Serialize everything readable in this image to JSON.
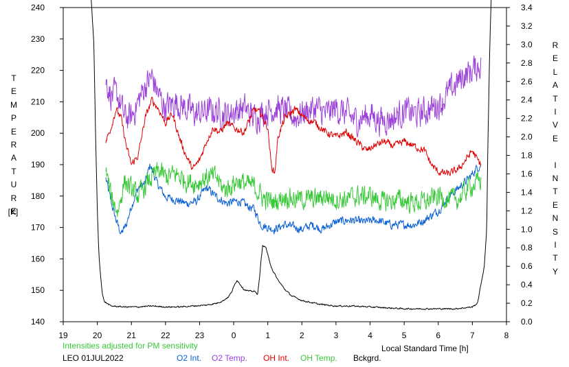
{
  "chart_data": {
    "type": "line",
    "title": "",
    "xlabel": "Local Standard Time [h]",
    "ylabel_left": "TEMPERATURE [K]",
    "ylabel_right": "RELATIVE INTENSITY",
    "left_axis": {
      "title_letters": [
        "T",
        "E",
        "M",
        "P",
        "E",
        "R",
        "A",
        "T",
        "U",
        "R",
        "E"
      ],
      "unit": "[K]",
      "range": [
        140,
        240
      ],
      "ticks": [
        "140",
        "150",
        "160",
        "170",
        "180",
        "190",
        "200",
        "210",
        "220",
        "230",
        "240"
      ]
    },
    "right_axis": {
      "title_letters": [
        "R",
        "E",
        "L",
        "A",
        "T",
        "I",
        "V",
        "E",
        "",
        "I",
        "N",
        "T",
        "E",
        "N",
        "S",
        "I",
        "T",
        "Y"
      ],
      "range": [
        0,
        3.4
      ],
      "ticks": [
        "0.0",
        "0.2",
        "0.4",
        "0.6",
        "0.8",
        "1.0",
        "1.2",
        "1.4",
        "1.6",
        "1.8",
        "2.0",
        "2.2",
        "2.4",
        "2.6",
        "2.8",
        "3.0",
        "3.2",
        "3.4"
      ]
    },
    "x_axis": {
      "range_hours": [
        19,
        32
      ],
      "ticks": [
        "19",
        "20",
        "21",
        "22",
        "23",
        "0",
        "1",
        "2",
        "3",
        "4",
        "5",
        "6",
        "7",
        "8"
      ]
    },
    "grid": false,
    "note": "Intensities adjusted for PM sensitivity",
    "station_date": "LEO 01JUL2022",
    "legend_position": "bottom",
    "series": [
      {
        "name": "O2 Int.",
        "color": "#0a5fd6",
        "axis": "right",
        "noise": 0.07,
        "points": [
          [
            20.25,
            1.55
          ],
          [
            20.4,
            1.3
          ],
          [
            20.55,
            1.1
          ],
          [
            20.7,
            0.95
          ],
          [
            20.85,
            1.05
          ],
          [
            21.0,
            1.25
          ],
          [
            21.2,
            1.45
          ],
          [
            21.4,
            1.5
          ],
          [
            21.55,
            1.7
          ],
          [
            21.75,
            1.5
          ],
          [
            22.0,
            1.35
          ],
          [
            22.3,
            1.32
          ],
          [
            22.6,
            1.28
          ],
          [
            22.9,
            1.3
          ],
          [
            23.2,
            1.45
          ],
          [
            23.5,
            1.35
          ],
          [
            23.8,
            1.28
          ],
          [
            24.0,
            1.3
          ],
          [
            24.2,
            1.3
          ],
          [
            24.4,
            1.25
          ],
          [
            24.6,
            1.22
          ],
          [
            24.8,
            1.05
          ],
          [
            25.0,
            1.02
          ],
          [
            25.2,
            1.0
          ],
          [
            25.5,
            1.05
          ],
          [
            26.0,
            1.0
          ],
          [
            26.3,
            1.05
          ],
          [
            26.6,
            1.0
          ],
          [
            27.0,
            1.08
          ],
          [
            27.4,
            1.1
          ],
          [
            27.8,
            1.08
          ],
          [
            28.2,
            1.1
          ],
          [
            28.6,
            1.05
          ],
          [
            29.0,
            1.05
          ],
          [
            29.3,
            1.05
          ],
          [
            29.6,
            1.1
          ],
          [
            30.0,
            1.2
          ],
          [
            30.3,
            1.35
          ],
          [
            30.6,
            1.45
          ],
          [
            30.9,
            1.55
          ],
          [
            31.1,
            1.65
          ],
          [
            31.25,
            1.7
          ]
        ]
      },
      {
        "name": "O2 Temp.",
        "color": "#9b40d8",
        "axis": "left",
        "noise": 7,
        "points": [
          [
            20.25,
            217
          ],
          [
            20.4,
            212
          ],
          [
            20.6,
            212
          ],
          [
            20.8,
            205
          ],
          [
            21.0,
            205
          ],
          [
            21.2,
            210
          ],
          [
            21.4,
            215
          ],
          [
            21.6,
            218
          ],
          [
            21.8,
            212
          ],
          [
            22.0,
            208
          ],
          [
            22.3,
            210
          ],
          [
            22.6,
            208
          ],
          [
            22.9,
            206
          ],
          [
            23.2,
            207
          ],
          [
            23.5,
            207
          ],
          [
            23.8,
            206
          ],
          [
            24.0,
            207
          ],
          [
            24.3,
            208
          ],
          [
            24.6,
            205
          ],
          [
            24.9,
            207
          ],
          [
            25.2,
            208
          ],
          [
            25.5,
            207
          ],
          [
            25.8,
            205
          ],
          [
            26.1,
            207
          ],
          [
            26.4,
            208
          ],
          [
            26.7,
            206
          ],
          [
            27.0,
            208
          ],
          [
            27.3,
            206
          ],
          [
            27.6,
            204
          ],
          [
            28.0,
            206
          ],
          [
            28.3,
            204
          ],
          [
            28.7,
            205
          ],
          [
            29.0,
            207
          ],
          [
            29.4,
            206
          ],
          [
            29.8,
            208
          ],
          [
            30.1,
            210
          ],
          [
            30.4,
            214
          ],
          [
            30.7,
            218
          ],
          [
            31.0,
            220
          ],
          [
            31.25,
            222
          ]
        ]
      },
      {
        "name": "OH Int.",
        "color": "#e00000",
        "axis": "right",
        "noise": 0.06,
        "points": [
          [
            20.25,
            1.95
          ],
          [
            20.4,
            2.1
          ],
          [
            20.55,
            2.3
          ],
          [
            20.7,
            2.2
          ],
          [
            20.85,
            1.9
          ],
          [
            21.0,
            1.7
          ],
          [
            21.2,
            1.8
          ],
          [
            21.4,
            2.2
          ],
          [
            21.6,
            2.4
          ],
          [
            21.8,
            2.3
          ],
          [
            22.0,
            2.15
          ],
          [
            22.2,
            2.25
          ],
          [
            22.4,
            2.0
          ],
          [
            22.6,
            1.8
          ],
          [
            22.8,
            1.65
          ],
          [
            23.0,
            1.75
          ],
          [
            23.2,
            1.95
          ],
          [
            23.4,
            2.1
          ],
          [
            23.6,
            2.05
          ],
          [
            23.8,
            2.15
          ],
          [
            24.0,
            2.1
          ],
          [
            24.3,
            2.05
          ],
          [
            24.6,
            2.3
          ],
          [
            24.8,
            2.25
          ],
          [
            25.0,
            2.1
          ],
          [
            25.1,
            1.7
          ],
          [
            25.2,
            1.6
          ],
          [
            25.3,
            2.0
          ],
          [
            25.5,
            2.2
          ],
          [
            25.8,
            2.3
          ],
          [
            26.1,
            2.2
          ],
          [
            26.4,
            2.15
          ],
          [
            26.7,
            2.05
          ],
          [
            27.0,
            2.0
          ],
          [
            27.3,
            2.05
          ],
          [
            27.6,
            1.95
          ],
          [
            27.9,
            1.85
          ],
          [
            28.1,
            1.9
          ],
          [
            28.4,
            1.95
          ],
          [
            28.7,
            1.9
          ],
          [
            29.0,
            1.95
          ],
          [
            29.3,
            1.9
          ],
          [
            29.6,
            1.85
          ],
          [
            29.8,
            1.7
          ],
          [
            30.0,
            1.62
          ],
          [
            30.3,
            1.6
          ],
          [
            30.6,
            1.65
          ],
          [
            30.8,
            1.75
          ],
          [
            31.0,
            1.85
          ],
          [
            31.15,
            1.75
          ],
          [
            31.25,
            1.7
          ]
        ]
      },
      {
        "name": "OH Temp.",
        "color": "#37c837",
        "axis": "left",
        "noise": 5,
        "points": [
          [
            20.25,
            188
          ],
          [
            20.4,
            180
          ],
          [
            20.6,
            175
          ],
          [
            20.8,
            185
          ],
          [
            21.0,
            182
          ],
          [
            21.2,
            180
          ],
          [
            21.4,
            183
          ],
          [
            21.6,
            186
          ],
          [
            21.8,
            188
          ],
          [
            22.0,
            186
          ],
          [
            22.3,
            187
          ],
          [
            22.6,
            185
          ],
          [
            22.9,
            184
          ],
          [
            23.2,
            186
          ],
          [
            23.5,
            186
          ],
          [
            23.7,
            182
          ],
          [
            23.9,
            183
          ],
          [
            24.1,
            185
          ],
          [
            24.3,
            184
          ],
          [
            24.6,
            183
          ],
          [
            24.9,
            179
          ],
          [
            25.2,
            178
          ],
          [
            25.5,
            180
          ],
          [
            25.8,
            179
          ],
          [
            26.1,
            179
          ],
          [
            26.4,
            179
          ],
          [
            26.7,
            180
          ],
          [
            27.0,
            179
          ],
          [
            27.3,
            179
          ],
          [
            27.6,
            180
          ],
          [
            28.0,
            180
          ],
          [
            28.4,
            178
          ],
          [
            28.8,
            179
          ],
          [
            29.2,
            178
          ],
          [
            29.6,
            178
          ],
          [
            30.0,
            180
          ],
          [
            30.3,
            179
          ],
          [
            30.6,
            179
          ],
          [
            30.9,
            183
          ],
          [
            31.1,
            184
          ],
          [
            31.25,
            185
          ]
        ]
      },
      {
        "name": "Bckgrd.",
        "color": "#000000",
        "axis": "right",
        "noise": 0.012,
        "points": [
          [
            19.82,
            3.5
          ],
          [
            19.9,
            3.0
          ],
          [
            19.95,
            2.0
          ],
          [
            20.0,
            1.2
          ],
          [
            20.05,
            0.7
          ],
          [
            20.1,
            0.48
          ],
          [
            20.15,
            0.3
          ],
          [
            20.2,
            0.22
          ],
          [
            20.4,
            0.17
          ],
          [
            20.8,
            0.16
          ],
          [
            21.2,
            0.16
          ],
          [
            21.6,
            0.17
          ],
          [
            22.0,
            0.16
          ],
          [
            22.4,
            0.16
          ],
          [
            22.8,
            0.17
          ],
          [
            23.2,
            0.18
          ],
          [
            23.5,
            0.2
          ],
          [
            23.7,
            0.23
          ],
          [
            23.85,
            0.27
          ],
          [
            23.95,
            0.33
          ],
          [
            24.05,
            0.42
          ],
          [
            24.1,
            0.45
          ],
          [
            24.2,
            0.4
          ],
          [
            24.3,
            0.35
          ],
          [
            24.45,
            0.33
          ],
          [
            24.6,
            0.33
          ],
          [
            24.7,
            0.3
          ],
          [
            24.75,
            0.45
          ],
          [
            24.8,
            0.65
          ],
          [
            24.85,
            0.83
          ],
          [
            24.95,
            0.8
          ],
          [
            25.05,
            0.65
          ],
          [
            25.15,
            0.55
          ],
          [
            25.3,
            0.45
          ],
          [
            25.5,
            0.35
          ],
          [
            25.7,
            0.28
          ],
          [
            26.0,
            0.23
          ],
          [
            26.5,
            0.19
          ],
          [
            27.0,
            0.17
          ],
          [
            27.5,
            0.17
          ],
          [
            28.0,
            0.16
          ],
          [
            28.5,
            0.15
          ],
          [
            29.0,
            0.14
          ],
          [
            29.5,
            0.14
          ],
          [
            30.0,
            0.14
          ],
          [
            30.5,
            0.14
          ],
          [
            31.0,
            0.16
          ],
          [
            31.15,
            0.2
          ],
          [
            31.25,
            0.4
          ],
          [
            31.35,
            0.6
          ],
          [
            31.42,
            1.0
          ],
          [
            31.45,
            1.8
          ],
          [
            31.5,
            2.8
          ],
          [
            31.55,
            3.5
          ]
        ]
      }
    ]
  }
}
